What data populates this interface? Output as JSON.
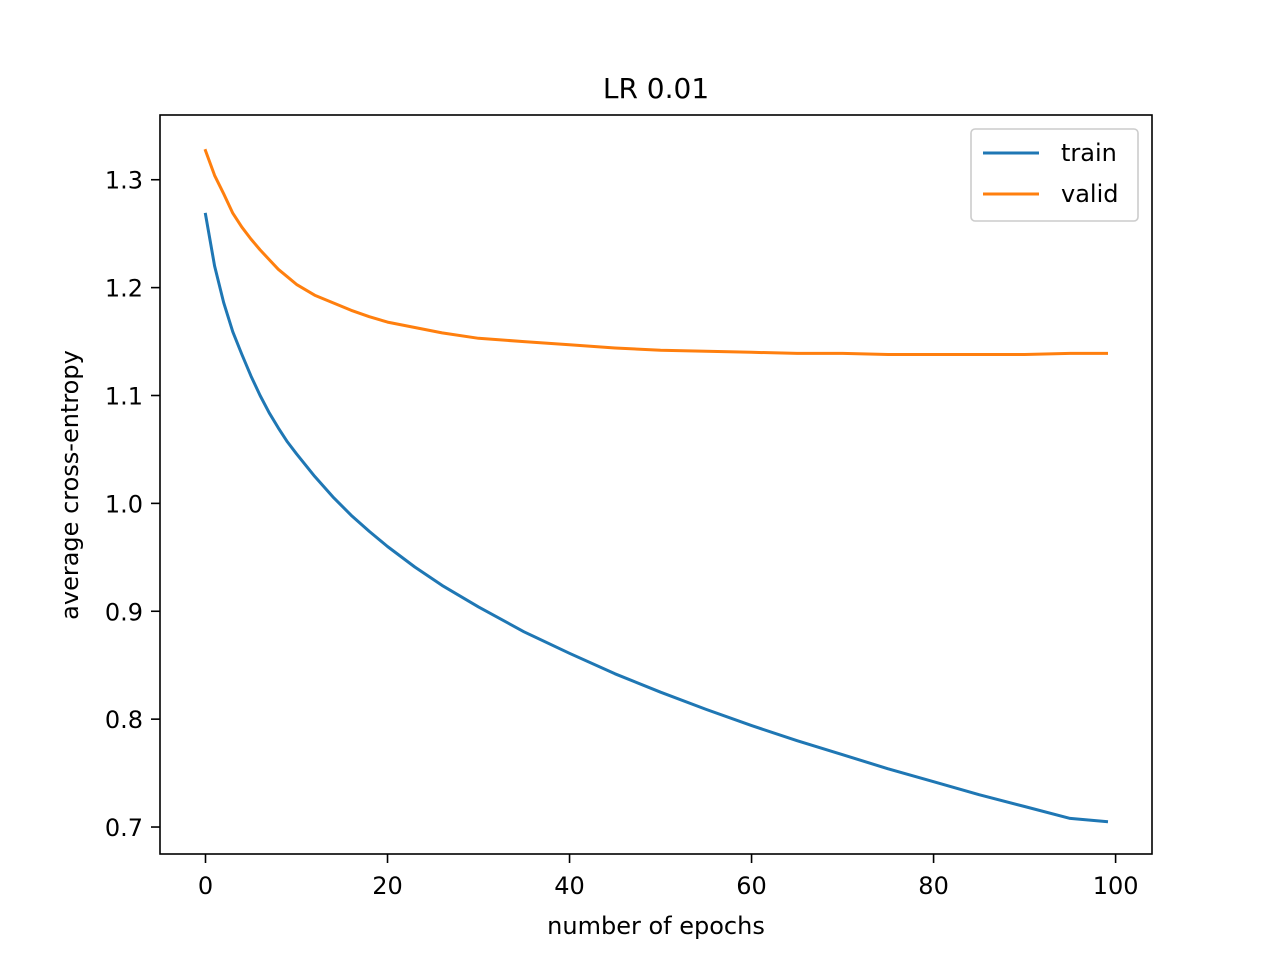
{
  "chart_data": {
    "type": "line",
    "title": "LR 0.01",
    "xlabel": "number of epochs",
    "ylabel": "average cross-entropy",
    "xlim": [
      -5,
      104
    ],
    "ylim": [
      0.675,
      1.36
    ],
    "xticks": [
      0,
      20,
      40,
      60,
      80,
      100
    ],
    "xtick_labels": [
      "0",
      "20",
      "40",
      "60",
      "80",
      "100"
    ],
    "yticks": [
      0.7,
      0.8,
      0.9,
      1.0,
      1.1,
      1.2,
      1.3
    ],
    "ytick_labels": [
      "0.7",
      "0.8",
      "0.9",
      "1.0",
      "1.1",
      "1.2",
      "1.3"
    ],
    "grid": false,
    "legend_position": "top-right",
    "series": [
      {
        "name": "train",
        "color": "#1f77b4",
        "x": [
          0,
          1,
          2,
          3,
          4,
          5,
          6,
          7,
          8,
          9,
          10,
          12,
          14,
          16,
          18,
          20,
          23,
          26,
          30,
          35,
          40,
          45,
          50,
          55,
          60,
          65,
          70,
          75,
          80,
          85,
          90,
          95,
          99
        ],
        "y": [
          1.268,
          1.22,
          1.186,
          1.159,
          1.138,
          1.118,
          1.1,
          1.084,
          1.07,
          1.057,
          1.046,
          1.025,
          1.006,
          0.989,
          0.974,
          0.96,
          0.941,
          0.924,
          0.904,
          0.881,
          0.861,
          0.842,
          0.825,
          0.809,
          0.794,
          0.78,
          0.767,
          0.754,
          0.742,
          0.73,
          0.719,
          0.708,
          0.705
        ]
      },
      {
        "name": "valid",
        "color": "#ff7f0e",
        "x": [
          0,
          1,
          2,
          3,
          4,
          5,
          6,
          7,
          8,
          9,
          10,
          12,
          14,
          16,
          18,
          20,
          23,
          26,
          30,
          35,
          40,
          45,
          50,
          55,
          60,
          65,
          70,
          75,
          80,
          85,
          90,
          95,
          99
        ],
        "y": [
          1.327,
          1.304,
          1.287,
          1.269,
          1.256,
          1.245,
          1.235,
          1.226,
          1.217,
          1.21,
          1.203,
          1.193,
          1.186,
          1.179,
          1.173,
          1.168,
          1.163,
          1.158,
          1.153,
          1.15,
          1.147,
          1.144,
          1.142,
          1.141,
          1.14,
          1.139,
          1.139,
          1.138,
          1.138,
          1.138,
          1.138,
          1.139,
          1.139
        ]
      }
    ]
  }
}
